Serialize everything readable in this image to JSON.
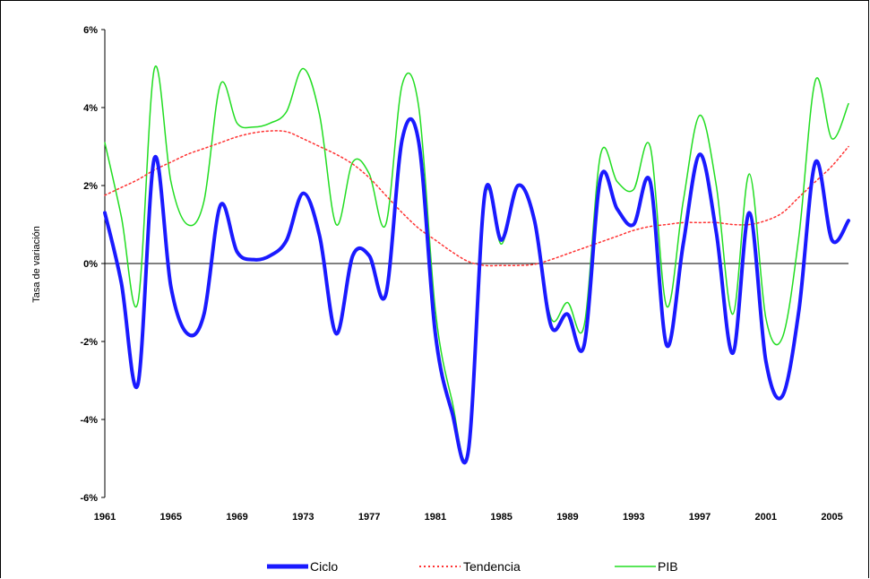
{
  "chart_data": {
    "type": "line",
    "title": "",
    "ylabel": "Tasa de variación",
    "xlabel": "",
    "ylim": [
      -6,
      6
    ],
    "xlim": [
      1961,
      2006
    ],
    "y_ticks": [
      6,
      4,
      2,
      0,
      -2,
      -4,
      -6
    ],
    "y_tick_labels": [
      "6%",
      "4%",
      "2%",
      "0%",
      "-2%",
      "-4%",
      "-6%"
    ],
    "x_ticks": [
      1961,
      1965,
      1969,
      1973,
      1977,
      1981,
      1985,
      1989,
      1993,
      1997,
      2001,
      2005
    ],
    "x_tick_labels": [
      "1961",
      "1965",
      "1969",
      "1973",
      "1977",
      "1981",
      "1985",
      "1989",
      "1993",
      "1997",
      "2001",
      "2005"
    ],
    "grid": false,
    "legend_position": "bottom",
    "x": [
      1961,
      1962,
      1963,
      1964,
      1965,
      1966,
      1967,
      1968,
      1969,
      1970,
      1971,
      1972,
      1973,
      1974,
      1975,
      1976,
      1977,
      1978,
      1979,
      1980,
      1981,
      1982,
      1983,
      1984,
      1985,
      1986,
      1987,
      1988,
      1989,
      1990,
      1991,
      1992,
      1993,
      1994,
      1995,
      1996,
      1997,
      1998,
      1999,
      2000,
      2001,
      2002,
      2003,
      2004,
      2005,
      2006
    ],
    "series": [
      {
        "name": "Ciclo",
        "color": "#1a1aff",
        "style": "thick",
        "values": [
          1.3,
          -0.5,
          -3.1,
          2.7,
          -0.6,
          -1.8,
          -1.3,
          1.5,
          0.3,
          0.1,
          0.2,
          0.6,
          1.8,
          0.7,
          -1.8,
          0.2,
          0.2,
          -0.8,
          3.2,
          3.1,
          -1.8,
          -3.8,
          -4.8,
          1.8,
          0.6,
          2.0,
          1.1,
          -1.6,
          -1.3,
          -2.1,
          2.2,
          1.4,
          1.0,
          2.1,
          -2.1,
          0.5,
          2.8,
          0.8,
          -2.3,
          1.3,
          -2.5,
          -3.4,
          -1.2,
          2.6,
          0.6,
          1.1
        ]
      },
      {
        "name": "Tendencia",
        "color": "#ff3333",
        "style": "dotted",
        "values": [
          1.75,
          1.95,
          2.15,
          2.4,
          2.6,
          2.8,
          2.95,
          3.1,
          3.25,
          3.35,
          3.4,
          3.38,
          3.2,
          3.0,
          2.8,
          2.55,
          2.2,
          1.75,
          1.3,
          0.9,
          0.6,
          0.3,
          0.05,
          -0.05,
          -0.05,
          -0.05,
          -0.02,
          0.1,
          0.25,
          0.4,
          0.55,
          0.7,
          0.85,
          0.95,
          1.0,
          1.05,
          1.05,
          1.05,
          1.0,
          1.0,
          1.1,
          1.3,
          1.7,
          2.1,
          2.5,
          3.0
        ]
      },
      {
        "name": "PIB",
        "color": "#22dd22",
        "style": "thin",
        "values": [
          3.1,
          1.2,
          -1.0,
          5.0,
          2.1,
          1.0,
          1.6,
          4.6,
          3.6,
          3.5,
          3.6,
          3.9,
          5.0,
          3.8,
          1.0,
          2.6,
          2.3,
          1.0,
          4.6,
          4.0,
          -1.2,
          -3.5,
          -4.8,
          1.7,
          0.5,
          2.0,
          1.1,
          -1.4,
          -1.0,
          -1.6,
          2.8,
          2.1,
          1.9,
          3.0,
          -1.1,
          1.6,
          3.8,
          2.0,
          -1.3,
          2.3,
          -1.4,
          -1.9,
          0.7,
          4.7,
          3.2,
          4.1
        ]
      }
    ]
  },
  "legend": {
    "items": [
      {
        "label": "Ciclo"
      },
      {
        "label": "Tendencia"
      },
      {
        "label": "PIB"
      }
    ]
  }
}
